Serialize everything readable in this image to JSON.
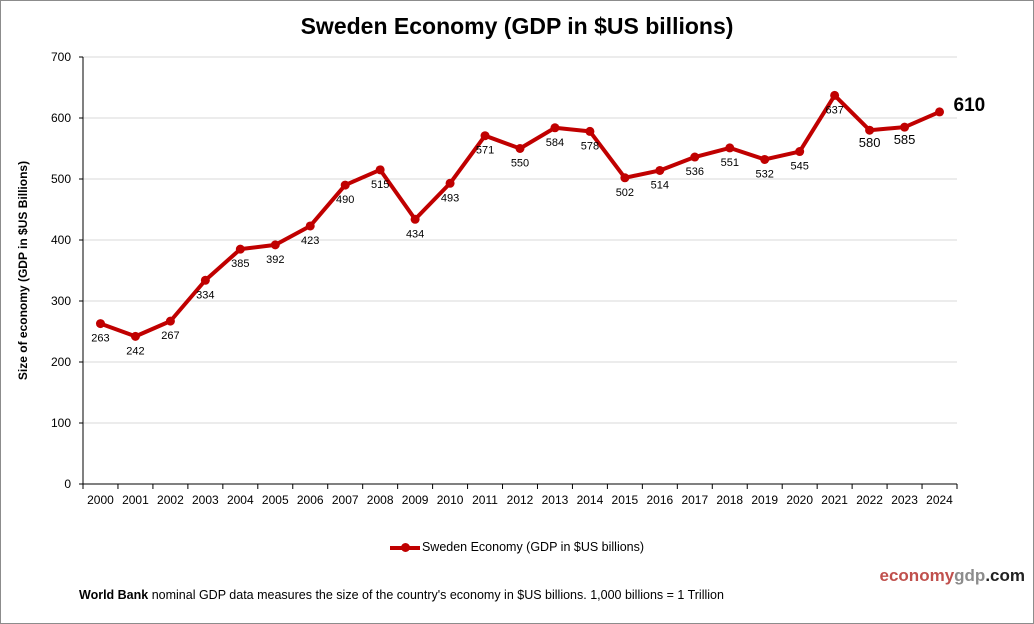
{
  "chart_data": {
    "type": "line",
    "title": "Sweden Economy (GDP in $US billions)",
    "xlabel": "",
    "ylabel": "Size of economy (GDP in $US Billions)",
    "ylim": [
      0,
      700
    ],
    "yticks": [
      0,
      100,
      200,
      300,
      400,
      500,
      600,
      700
    ],
    "grid": true,
    "legend_placement": "bottom",
    "categories": [
      "2000",
      "2001",
      "2002",
      "2003",
      "2004",
      "2005",
      "2006",
      "2007",
      "2008",
      "2009",
      "2010",
      "2011",
      "2012",
      "2013",
      "2014",
      "2015",
      "2016",
      "2017",
      "2018",
      "2019",
      "2020",
      "2021",
      "2022",
      "2023",
      "2024"
    ],
    "series": [
      {
        "name": "Sweden Economy (GDP in $US billions)",
        "color": "#c00000",
        "values": [
          263,
          242,
          267,
          334,
          385,
          392,
          423,
          490,
          515,
          434,
          493,
          571,
          550,
          584,
          578,
          502,
          514,
          536,
          551,
          532,
          545,
          637,
          580,
          585,
          610
        ]
      }
    ]
  },
  "footer": {
    "note_bold": "World Bank",
    "note_rest": " nominal GDP data  measures the size of the country's economy in $US billions. 1,000 billions = 1 Trillion",
    "logo_a": "economy",
    "logo_b": "gdp",
    "logo_c": ".com"
  }
}
